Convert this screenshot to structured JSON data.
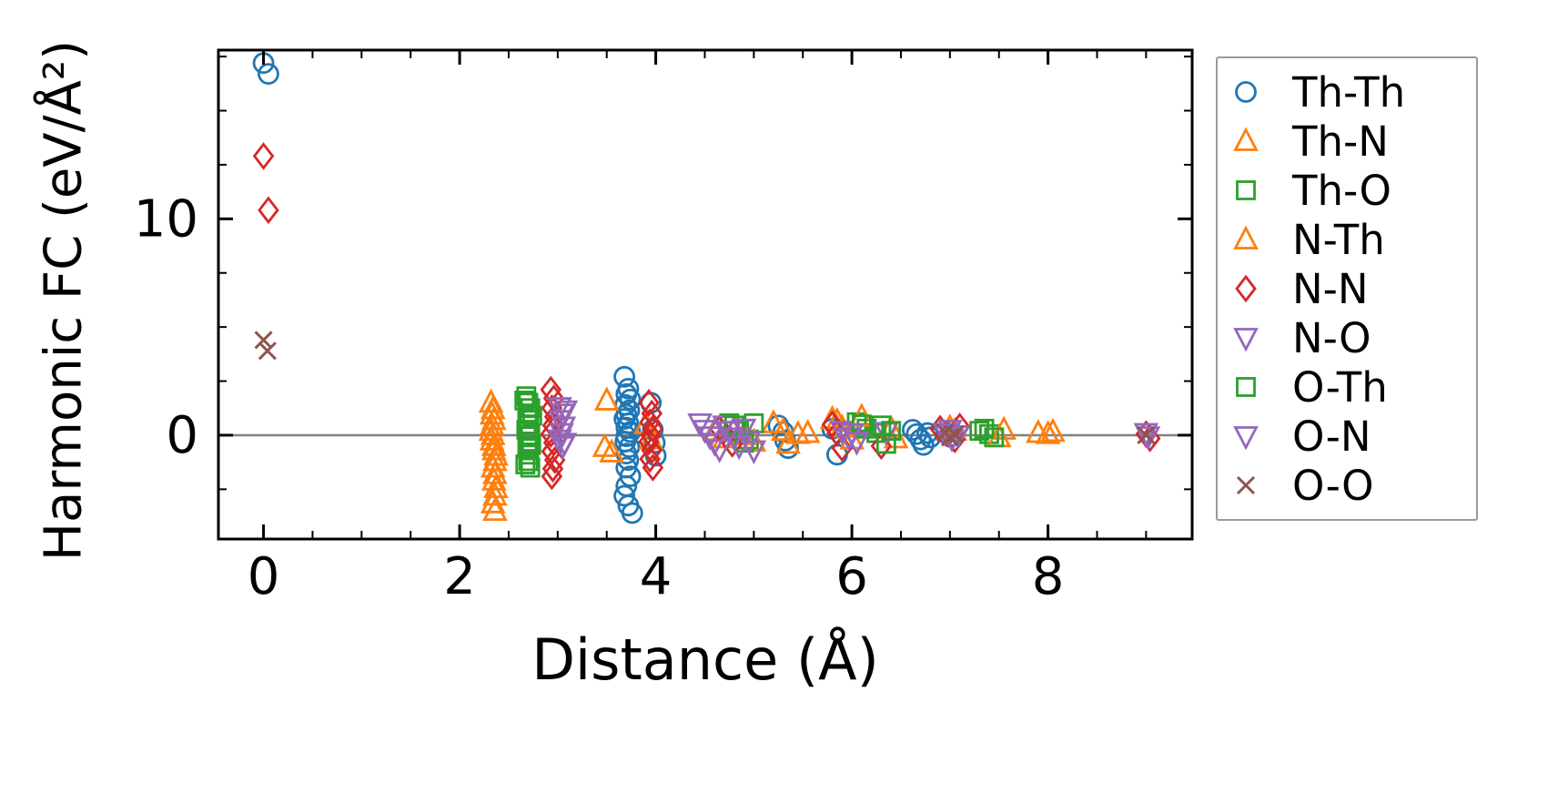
{
  "figure": {
    "background": "#ffffff"
  },
  "chart_data": {
    "type": "scatter",
    "title": "",
    "xlabel": "Distance (Å)",
    "ylabel": "Harmonic FC (eV/Å²)",
    "xlim": [
      -0.46,
      9.47
    ],
    "ylim": [
      -4.8,
      17.8
    ],
    "xticks": [
      0,
      2,
      4,
      6,
      8
    ],
    "yticks": [
      0,
      10
    ],
    "x_minor_step": 0.5,
    "y_minor_step": 2.5,
    "grid": false,
    "zero_line": true,
    "zero_line_color": "#808080",
    "axis_color": "#000000",
    "legend_position": "outside-right",
    "series": [
      {
        "name": "Th-Th",
        "marker": "circle",
        "color": "#1f77b4",
        "points": [
          [
            0.0,
            17.2
          ],
          [
            0.05,
            16.7
          ],
          [
            3.68,
            2.7
          ],
          [
            3.72,
            2.15
          ],
          [
            3.7,
            1.9
          ],
          [
            3.74,
            1.65
          ],
          [
            3.69,
            1.4
          ],
          [
            3.73,
            1.15
          ],
          [
            3.7,
            0.95
          ],
          [
            3.68,
            0.75
          ],
          [
            3.72,
            0.55
          ],
          [
            3.7,
            0.35
          ],
          [
            3.74,
            0.15
          ],
          [
            3.7,
            -0.05
          ],
          [
            3.69,
            -0.3
          ],
          [
            3.73,
            -0.55
          ],
          [
            3.7,
            -0.85
          ],
          [
            3.72,
            -1.15
          ],
          [
            3.7,
            -1.5
          ],
          [
            3.74,
            -1.9
          ],
          [
            3.7,
            -2.35
          ],
          [
            3.68,
            -2.8
          ],
          [
            3.72,
            -3.25
          ],
          [
            3.76,
            -3.6
          ],
          [
            3.95,
            1.5
          ],
          [
            3.97,
            0.25
          ],
          [
            3.99,
            -0.35
          ],
          [
            4.0,
            -0.95
          ],
          [
            5.25,
            0.45
          ],
          [
            5.3,
            0.15
          ],
          [
            5.32,
            -0.25
          ],
          [
            5.35,
            -0.6
          ],
          [
            5.8,
            0.3
          ],
          [
            5.85,
            -0.9
          ],
          [
            6.62,
            0.25
          ],
          [
            6.66,
            0.05
          ],
          [
            6.7,
            -0.2
          ],
          [
            6.73,
            -0.45
          ],
          [
            6.77,
            0.1
          ],
          [
            6.8,
            -0.1
          ],
          [
            7.0,
            -0.05
          ]
        ]
      },
      {
        "name": "Th-N",
        "marker": "triangle-up",
        "color": "#ff7f0e",
        "points": [
          [
            2.32,
            1.5
          ],
          [
            2.34,
            1.2
          ],
          [
            2.33,
            0.95
          ],
          [
            2.35,
            0.7
          ],
          [
            2.33,
            0.45
          ],
          [
            2.32,
            0.2
          ],
          [
            2.34,
            0.0
          ],
          [
            2.33,
            -0.25
          ],
          [
            2.35,
            -0.5
          ],
          [
            3.5,
            1.6
          ],
          [
            3.48,
            -0.55
          ],
          [
            4.6,
            0.2
          ],
          [
            4.7,
            -0.15
          ],
          [
            5.2,
            0.55
          ],
          [
            5.3,
            0.2
          ],
          [
            5.45,
            0.05
          ],
          [
            5.85,
            0.65
          ],
          [
            6.0,
            -0.2
          ],
          [
            6.4,
            0.3
          ],
          [
            7.05,
            0.2
          ],
          [
            7.55,
            0.25
          ],
          [
            7.9,
            0.1
          ],
          [
            8.0,
            0.05
          ]
        ]
      },
      {
        "name": "Th-O",
        "marker": "square",
        "color": "#2ca02c",
        "points": [
          [
            2.68,
            1.8
          ],
          [
            2.7,
            1.5
          ],
          [
            2.72,
            1.25
          ],
          [
            2.69,
            1.0
          ],
          [
            2.71,
            0.75
          ],
          [
            2.7,
            0.5
          ],
          [
            2.68,
            0.25
          ],
          [
            2.72,
            0.0
          ],
          [
            2.7,
            -0.3
          ],
          [
            2.69,
            -0.6
          ],
          [
            2.71,
            -0.9
          ],
          [
            2.7,
            -1.2
          ],
          [
            2.72,
            -1.5
          ],
          [
            4.75,
            0.55
          ],
          [
            4.85,
            0.2
          ],
          [
            4.95,
            -0.2
          ],
          [
            6.05,
            0.6
          ],
          [
            6.15,
            0.3
          ],
          [
            6.25,
            0.1
          ],
          [
            7.3,
            0.2
          ],
          [
            7.4,
            0.05
          ]
        ]
      },
      {
        "name": "N-Th",
        "marker": "triangle-up",
        "color": "#ff7f0e",
        "points": [
          [
            2.35,
            -0.7
          ],
          [
            2.37,
            -0.95
          ],
          [
            2.36,
            -1.2
          ],
          [
            2.34,
            -1.5
          ],
          [
            2.36,
            -1.8
          ],
          [
            2.35,
            -2.1
          ],
          [
            2.37,
            -2.45
          ],
          [
            2.36,
            -2.8
          ],
          [
            2.34,
            -3.15
          ],
          [
            2.36,
            -3.5
          ],
          [
            3.55,
            -0.8
          ],
          [
            3.9,
            0.5
          ],
          [
            3.95,
            -0.2
          ],
          [
            4.8,
            0.3
          ],
          [
            4.9,
            0.0
          ],
          [
            5.0,
            -0.3
          ],
          [
            5.35,
            -0.4
          ],
          [
            5.55,
            0.1
          ],
          [
            5.8,
            0.75
          ],
          [
            5.9,
            0.35
          ],
          [
            6.1,
            0.85
          ],
          [
            6.45,
            -0.15
          ],
          [
            7.0,
            0.35
          ],
          [
            7.5,
            -0.1
          ],
          [
            8.05,
            0.15
          ]
        ]
      },
      {
        "name": "N-N",
        "marker": "diamond",
        "color": "#d62728",
        "points": [
          [
            0.0,
            12.9
          ],
          [
            0.05,
            10.4
          ],
          [
            2.93,
            2.1
          ],
          [
            2.96,
            1.7
          ],
          [
            2.94,
            1.25
          ],
          [
            2.97,
            0.85
          ],
          [
            2.95,
            0.45
          ],
          [
            2.93,
            0.05
          ],
          [
            2.96,
            -0.35
          ],
          [
            2.94,
            -0.75
          ],
          [
            2.97,
            -1.15
          ],
          [
            2.95,
            -1.55
          ],
          [
            2.94,
            -1.9
          ],
          [
            3.93,
            1.5
          ],
          [
            3.96,
            1.0
          ],
          [
            3.94,
            0.6
          ],
          [
            3.97,
            0.3
          ],
          [
            3.95,
            0.0
          ],
          [
            3.93,
            -0.3
          ],
          [
            3.96,
            -0.7
          ],
          [
            3.94,
            -1.1
          ],
          [
            3.97,
            -1.5
          ],
          [
            4.65,
            0.3
          ],
          [
            4.72,
            -0.05
          ],
          [
            4.78,
            -0.4
          ],
          [
            5.8,
            0.5
          ],
          [
            5.85,
            0.1
          ],
          [
            5.9,
            -0.6
          ],
          [
            6.3,
            -0.5
          ],
          [
            6.9,
            0.3
          ],
          [
            6.98,
            0.05
          ],
          [
            7.05,
            -0.2
          ],
          [
            7.1,
            0.4
          ],
          [
            9.0,
            0.05
          ],
          [
            9.04,
            -0.15
          ]
        ]
      },
      {
        "name": "N-O",
        "marker": "triangle-down",
        "color": "#9467bd",
        "points": [
          [
            3.02,
            1.3
          ],
          [
            3.05,
            1.0
          ],
          [
            3.03,
            0.7
          ],
          [
            3.06,
            0.4
          ],
          [
            3.04,
            0.1
          ],
          [
            3.02,
            -0.2
          ],
          [
            3.05,
            -0.5
          ],
          [
            4.45,
            0.55
          ],
          [
            4.5,
            0.25
          ],
          [
            4.55,
            -0.05
          ],
          [
            4.6,
            -0.35
          ],
          [
            4.65,
            -0.65
          ],
          [
            4.7,
            0.45
          ],
          [
            5.9,
            0.2
          ],
          [
            5.97,
            -0.1
          ],
          [
            6.35,
            0.15
          ],
          [
            6.95,
            0.1
          ],
          [
            7.02,
            -0.15
          ],
          [
            9.0,
            0.1
          ]
        ]
      },
      {
        "name": "O-Th",
        "marker": "square",
        "color": "#2ca02c",
        "points": [
          [
            2.66,
            1.6
          ],
          [
            2.74,
            0.9
          ],
          [
            2.73,
            -0.45
          ],
          [
            2.67,
            -1.35
          ],
          [
            4.8,
            0.45
          ],
          [
            4.9,
            -0.35
          ],
          [
            5.0,
            0.55
          ],
          [
            6.1,
            0.5
          ],
          [
            6.3,
            0.45
          ],
          [
            6.35,
            -0.4
          ],
          [
            6.4,
            0.2
          ],
          [
            7.35,
            0.3
          ],
          [
            7.45,
            -0.1
          ]
        ]
      },
      {
        "name": "O-N",
        "marker": "triangle-down",
        "color": "#9467bd",
        "points": [
          [
            3.08,
            1.15
          ],
          [
            3.07,
            -0.35
          ],
          [
            4.75,
            0.2
          ],
          [
            4.8,
            -0.1
          ],
          [
            4.85,
            -0.5
          ],
          [
            4.9,
            0.3
          ],
          [
            4.95,
            -0.25
          ],
          [
            5.0,
            -0.7
          ],
          [
            6.0,
            0.1
          ],
          [
            6.05,
            -0.3
          ],
          [
            7.0,
            0.25
          ],
          [
            7.08,
            0.0
          ],
          [
            9.02,
            -0.05
          ]
        ]
      },
      {
        "name": "O-O",
        "marker": "x",
        "color": "#8c564b",
        "points": [
          [
            0.0,
            4.4
          ],
          [
            0.04,
            3.9
          ],
          [
            6.95,
            0.12
          ],
          [
            7.0,
            -0.1
          ],
          [
            7.05,
            0.03
          ],
          [
            9.0,
            0.0
          ]
        ]
      }
    ]
  }
}
